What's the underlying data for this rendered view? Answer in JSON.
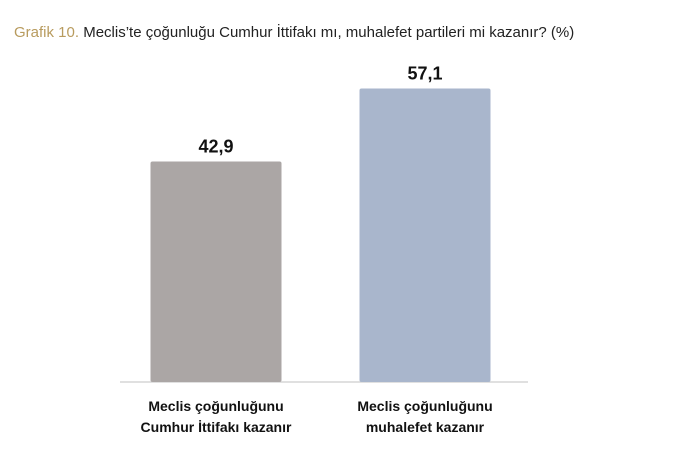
{
  "chart_data": {
    "type": "bar",
    "figure_label": "Grafik 10.",
    "title": "Meclis’te çoğunluğu Cumhur İttifakı mı, muhalefet partileri mi kazanır? (%)",
    "categories": [
      "Meclis çoğunluğunu Cumhur İttifakı kazanır",
      "Meclis çoğunluğunu muhalefet kazanır"
    ],
    "values": [
      42.9,
      57.1
    ],
    "value_labels": [
      "42,9",
      "57,1"
    ],
    "colors": [
      "#aba6a5",
      "#a9b6cc"
    ]
  }
}
